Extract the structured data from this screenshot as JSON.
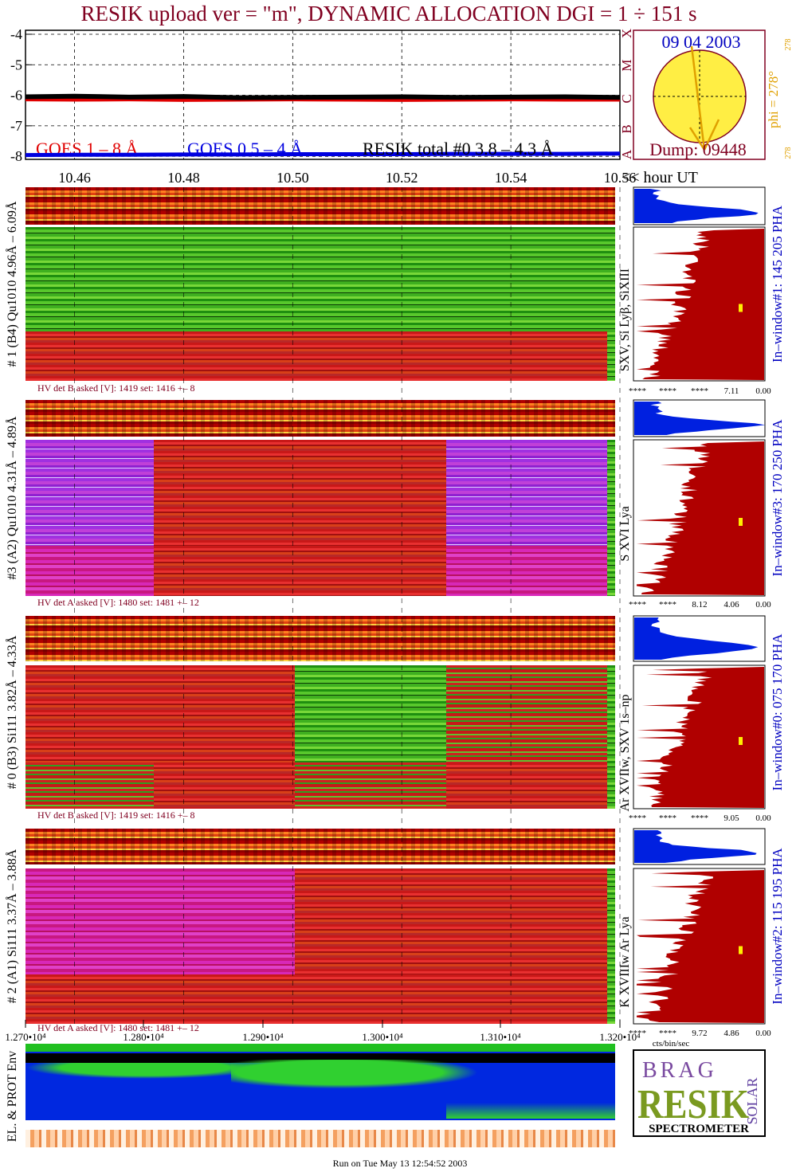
{
  "title": "RESIK upload ver = \"m\", DYNAMIC ALLOCATION  DGI =   1 ÷ 151 s",
  "chart_data": [
    {
      "type": "line",
      "x": [
        10.451,
        10.46,
        10.47,
        10.48,
        10.49,
        10.5,
        10.51,
        10.52,
        10.53,
        10.54,
        10.55,
        10.56
      ],
      "series": [
        {
          "name": "GOES 1 – 8 Å",
          "color": "#e00000",
          "values": [
            -6.12,
            -6.13,
            -6.12,
            -6.14,
            -6.13,
            -6.12,
            -6.13,
            -6.14,
            -6.13,
            -6.12,
            -6.13,
            -6.13
          ]
        },
        {
          "name": "GOES 0.5 – 4 Å",
          "color": "#0000e0",
          "values": [
            -7.96,
            -7.95,
            -7.95,
            -7.94,
            -7.94,
            -7.93,
            -7.93,
            -7.93,
            -7.92,
            -7.92,
            -7.92,
            -7.91
          ]
        },
        {
          "name": "RESIK total #0  3.8 – 4.3 Å",
          "color": "#000000",
          "values": [
            -6.05,
            -6.03,
            -6.06,
            -6.04,
            -6.08,
            -6.07,
            -6.06,
            -6.05,
            -6.07,
            -6.06,
            -6.05,
            -6.07
          ]
        }
      ],
      "xlim": [
        10.451,
        10.56
      ],
      "xticks": [
        10.46,
        10.48,
        {
          "value": 10.5,
          "label": "10.50"
        },
        10.52,
        10.54,
        10.56
      ],
      "ylim": [
        -8.1,
        -3.87
      ],
      "yticks": [
        -4,
        -5,
        -6,
        -7,
        -8
      ],
      "x_annotation": "<< hour UT",
      "grid": true,
      "legend": "bottom"
    }
  ],
  "sun_panel": {
    "date": "09 04 2003",
    "dump": "Dump: 09448",
    "phi": "phi = 278°",
    "phi_top": "278",
    "phi_bottom": "278",
    "classes": [
      "X",
      "M",
      "C",
      "B",
      "A"
    ]
  },
  "panels": [
    {
      "label": "# 1 (B4) Qu1010 4.96Å – 6.09Å",
      "lines": "SXV, Si Lyβ, SiXIII",
      "hv": "HV det B asked [V]:  1419 set:  1416 +–    8",
      "pha": "In–window#1:  145 205 PHA",
      "hist_ticks": [
        "****",
        "****",
        "****",
        "7.11",
        "0.00"
      ]
    },
    {
      "label": "#3 (A2) Qu1010  4.31Å – 4.89Å",
      "lines": "S XVI Lya",
      "hv": "HV det A asked [V]:  1480 set:  1481 +–   12",
      "pha": "In–window#3:  170 250 PHA",
      "hist_ticks": [
        "****",
        "****",
        "8.12",
        "4.06",
        "0.00"
      ]
    },
    {
      "label": "# 0 (B3) Si111  3.82Å – 4.33Å",
      "lines": "Ar XVIIw,  SXV 1s–np",
      "hv": "HV det B asked [V]:  1419 set:  1416 +–    8",
      "pha": "In–window#0:  075 170 PHA",
      "hist_ticks": [
        "****",
        "****",
        "****",
        "9.05",
        "0.00"
      ]
    },
    {
      "label": "# 2 (A1) Si111  3.37Å – 3.88Å",
      "lines": "K XVIIIw  Ar Lya",
      "hv": "HV det A asked [V]:  1480 set:  1481 +–   12",
      "pha": "In–window#2:  115 195 PHA",
      "hist_ticks": [
        "****",
        "****",
        "9.72",
        "4.86",
        "0.00"
      ]
    }
  ],
  "hist_unit": "cts/bin/sec",
  "time_axis": {
    "ticks": [
      "1.270•10⁴",
      "1.280•10⁴",
      "1.290•10⁴",
      "1.300•10⁴",
      "1.310•10⁴",
      "1.320•10⁴"
    ]
  },
  "env_label": "EL. & PROT Env",
  "logo": {
    "top": "BRAG",
    "main": "RESIK",
    "side": "SOLAR",
    "bottom": "SPECTROMETER"
  },
  "footer": "Run on Tue May 13 12:54:52 2003"
}
